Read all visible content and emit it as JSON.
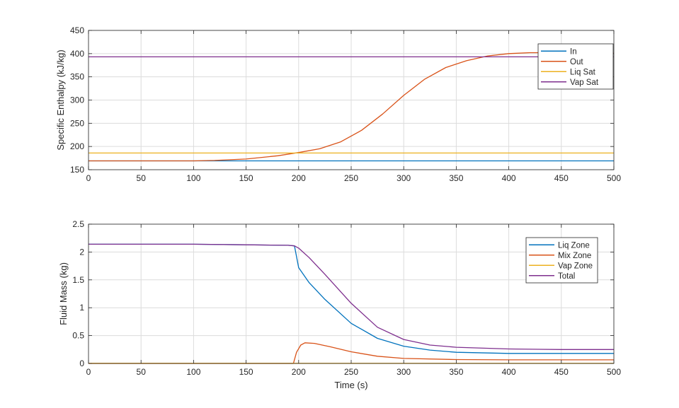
{
  "colors": {
    "blue": "#0072BD",
    "orange": "#D95319",
    "yellow": "#EDB120",
    "purple": "#7E2F8E",
    "grid": "#dcdcdc",
    "axis": "#262626"
  },
  "chart_data": [
    {
      "type": "line",
      "title": "",
      "xlabel": "",
      "ylabel": "Specific Enthalpy (kJ/kg)",
      "xlim": [
        0,
        500
      ],
      "ylim": [
        150,
        450
      ],
      "xticks": [
        0,
        50,
        100,
        150,
        200,
        250,
        300,
        350,
        400,
        450,
        500
      ],
      "yticks": [
        150,
        200,
        250,
        300,
        350,
        400,
        450
      ],
      "grid": true,
      "legend_position": "top-right",
      "series": [
        {
          "name": "In",
          "color": "#0072BD",
          "x": [
            0,
            500
          ],
          "y": [
            169,
            169
          ]
        },
        {
          "name": "Out",
          "color": "#D95319",
          "x": [
            0,
            100,
            120,
            150,
            180,
            200,
            220,
            240,
            260,
            280,
            300,
            320,
            340,
            360,
            380,
            400,
            420,
            450,
            480,
            500
          ],
          "y": [
            169,
            169,
            170,
            173,
            180,
            187,
            195,
            210,
            235,
            270,
            310,
            345,
            370,
            385,
            395,
            400,
            402,
            402,
            402,
            401
          ]
        },
        {
          "name": "Liq Sat",
          "color": "#EDB120",
          "x": [
            0,
            500
          ],
          "y": [
            186,
            186
          ]
        },
        {
          "name": "Vap Sat",
          "color": "#7E2F8E",
          "x": [
            0,
            500
          ],
          "y": [
            393,
            393
          ]
        }
      ]
    },
    {
      "type": "line",
      "title": "",
      "xlabel": "Time (s)",
      "ylabel": "Fluid Mass (kg)",
      "xlim": [
        0,
        500
      ],
      "ylim": [
        0,
        2.5
      ],
      "xticks": [
        0,
        50,
        100,
        150,
        200,
        250,
        300,
        350,
        400,
        450,
        500
      ],
      "yticks": [
        0,
        0.5,
        1,
        1.5,
        2,
        2.5
      ],
      "grid": true,
      "legend_position": "top-right",
      "series": [
        {
          "name": "Liq Zone",
          "color": "#0072BD",
          "x": [
            0,
            100,
            150,
            190,
            196,
            200,
            210,
            225,
            250,
            275,
            300,
            325,
            350,
            400,
            450,
            500
          ],
          "y": [
            2.14,
            2.14,
            2.13,
            2.12,
            2.11,
            1.72,
            1.45,
            1.15,
            0.72,
            0.45,
            0.31,
            0.24,
            0.2,
            0.18,
            0.18,
            0.18
          ]
        },
        {
          "name": "Mix Zone",
          "color": "#D95319",
          "x": [
            0,
            195,
            198,
            202,
            206,
            215,
            230,
            250,
            275,
            300,
            350,
            400,
            450,
            500
          ],
          "y": [
            0,
            0,
            0.2,
            0.33,
            0.37,
            0.36,
            0.3,
            0.21,
            0.13,
            0.09,
            0.07,
            0.065,
            0.065,
            0.065
          ]
        },
        {
          "name": "Vap Zone",
          "color": "#EDB120",
          "x": [
            0,
            500
          ],
          "y": [
            0.002,
            0.002
          ]
        },
        {
          "name": "Total",
          "color": "#7E2F8E",
          "x": [
            0,
            100,
            150,
            190,
            196,
            200,
            210,
            225,
            250,
            275,
            300,
            325,
            350,
            400,
            450,
            500
          ],
          "y": [
            2.14,
            2.14,
            2.13,
            2.12,
            2.11,
            2.07,
            1.9,
            1.6,
            1.08,
            0.65,
            0.43,
            0.33,
            0.29,
            0.26,
            0.25,
            0.25
          ]
        }
      ]
    }
  ]
}
